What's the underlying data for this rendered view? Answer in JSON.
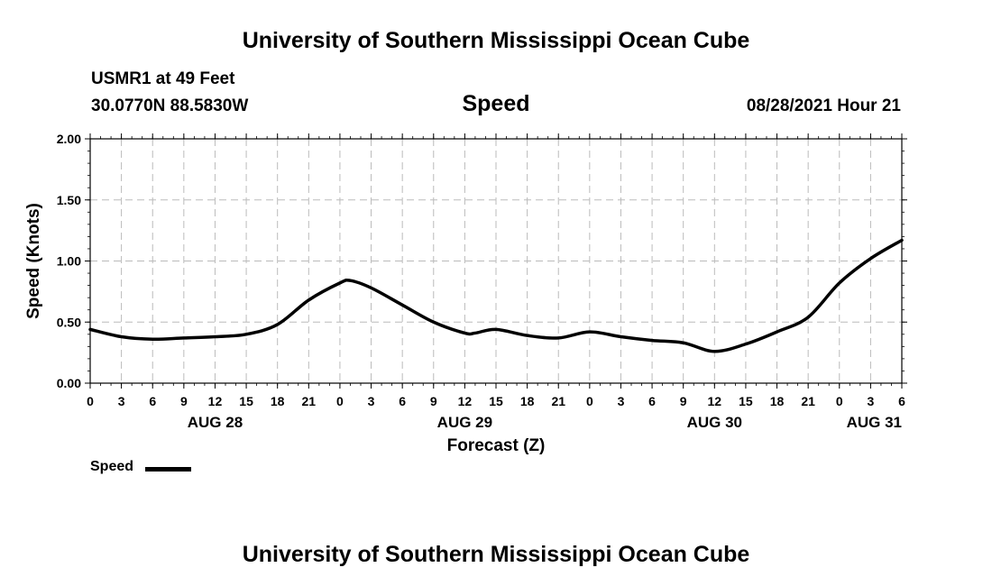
{
  "header": {
    "title": "University of Southern Mississippi Ocean Cube",
    "station": "USMR1 at 49 Feet",
    "coords": "30.0770N  88.5830W",
    "variable": "Speed",
    "run": "08/28/2021 Hour 21"
  },
  "footer": {
    "title": "University of Southern Mississippi Ocean Cube"
  },
  "legend": {
    "label": "Speed"
  },
  "chart_data": {
    "type": "line",
    "title": "Speed",
    "xlabel": "Forecast (Z)",
    "ylabel": "Speed (Knots)",
    "ylim": [
      0,
      2
    ],
    "xlim": [
      0,
      78
    ],
    "grid": true,
    "y_ticks": [
      0,
      0.5,
      1,
      1.5,
      2
    ],
    "y_tick_labels": [
      "0.00",
      "0.50",
      "1.00",
      "1.50",
      "2.00"
    ],
    "x_ticks": [
      0,
      3,
      6,
      9,
      12,
      15,
      18,
      21,
      24,
      27,
      30,
      33,
      36,
      39,
      42,
      45,
      48,
      51,
      54,
      57,
      60,
      63,
      66,
      69,
      72,
      75,
      78
    ],
    "x_tick_labels": [
      "0",
      "3",
      "6",
      "9",
      "12",
      "15",
      "18",
      "21",
      "0",
      "3",
      "6",
      "9",
      "12",
      "15",
      "18",
      "21",
      "0",
      "3",
      "6",
      "9",
      "12",
      "15",
      "18",
      "21",
      "0",
      "3",
      "6"
    ],
    "date_labels": [
      {
        "hour": 12,
        "label": "AUG 28"
      },
      {
        "hour": 36,
        "label": "AUG 29"
      },
      {
        "hour": 60,
        "label": "AUG 30"
      },
      {
        "hour": 78,
        "label": "AUG 31"
      }
    ],
    "series": [
      {
        "name": "Speed",
        "color": "#000000",
        "x": [
          0,
          3,
          6,
          9,
          12,
          15,
          18,
          21,
          24,
          25,
          27,
          30,
          33,
          36,
          37,
          39,
          42,
          45,
          48,
          51,
          54,
          57,
          60,
          63,
          66,
          69,
          72,
          75,
          78
        ],
        "values": [
          0.44,
          0.38,
          0.36,
          0.37,
          0.38,
          0.4,
          0.48,
          0.68,
          0.82,
          0.84,
          0.78,
          0.64,
          0.5,
          0.41,
          0.41,
          0.44,
          0.39,
          0.37,
          0.42,
          0.38,
          0.35,
          0.33,
          0.26,
          0.32,
          0.42,
          0.54,
          0.82,
          1.02,
          1.17
        ]
      }
    ]
  }
}
